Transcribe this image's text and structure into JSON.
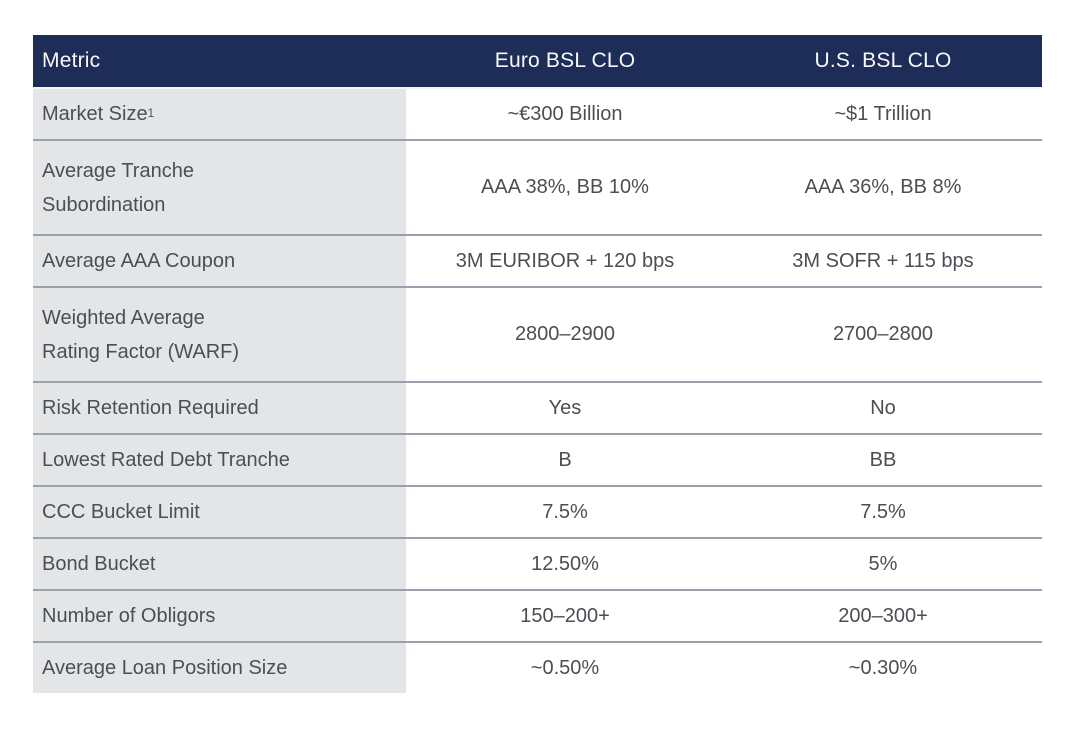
{
  "table": {
    "title": "Euro vs U.S. BSL CLO comparison table",
    "columns": {
      "metric": "Metric",
      "euro": "Euro BSL CLO",
      "us": "U.S. BSL CLO"
    },
    "rows": [
      {
        "metric": "Market Size",
        "metric_sup": "1",
        "euro": "~€300 Billion",
        "us": "~$1 Trillion",
        "tall": false
      },
      {
        "metric": "Average Tranche\nSubordination",
        "euro": "AAA 38%, BB 10%",
        "us": "AAA 36%, BB 8%",
        "tall": true
      },
      {
        "metric": "Average AAA Coupon",
        "euro": "3M EURIBOR + 120 bps",
        "us": "3M SOFR + 115 bps",
        "tall": false
      },
      {
        "metric": "Weighted Average\nRating Factor (WARF)",
        "euro": "2800–2900",
        "us": "2700–2800",
        "tall": true
      },
      {
        "metric": "Risk Retention Required",
        "euro": "Yes",
        "us": "No",
        "tall": false
      },
      {
        "metric": "Lowest Rated Debt Tranche",
        "euro": "B",
        "us": "BB",
        "tall": false
      },
      {
        "metric": "CCC Bucket Limit",
        "euro": "7.5%",
        "us": "7.5%",
        "tall": false
      },
      {
        "metric": "Bond Bucket",
        "euro": "12.50%",
        "us": "5%",
        "tall": false
      },
      {
        "metric": "Number of Obligors",
        "euro": "150–200+",
        "us": "200–300+",
        "tall": false
      },
      {
        "metric": "Average Loan Position Size",
        "euro": "~0.50%",
        "us": "~0.30%",
        "tall": false
      }
    ],
    "colors": {
      "header_bg": "#1e2c58",
      "header_text": "#f7f8f9",
      "label_column_bg": "#e3e5e7",
      "value_column_bg": "#ffffff",
      "divider": "#98a1ac",
      "body_text": "#4b4f54"
    }
  }
}
